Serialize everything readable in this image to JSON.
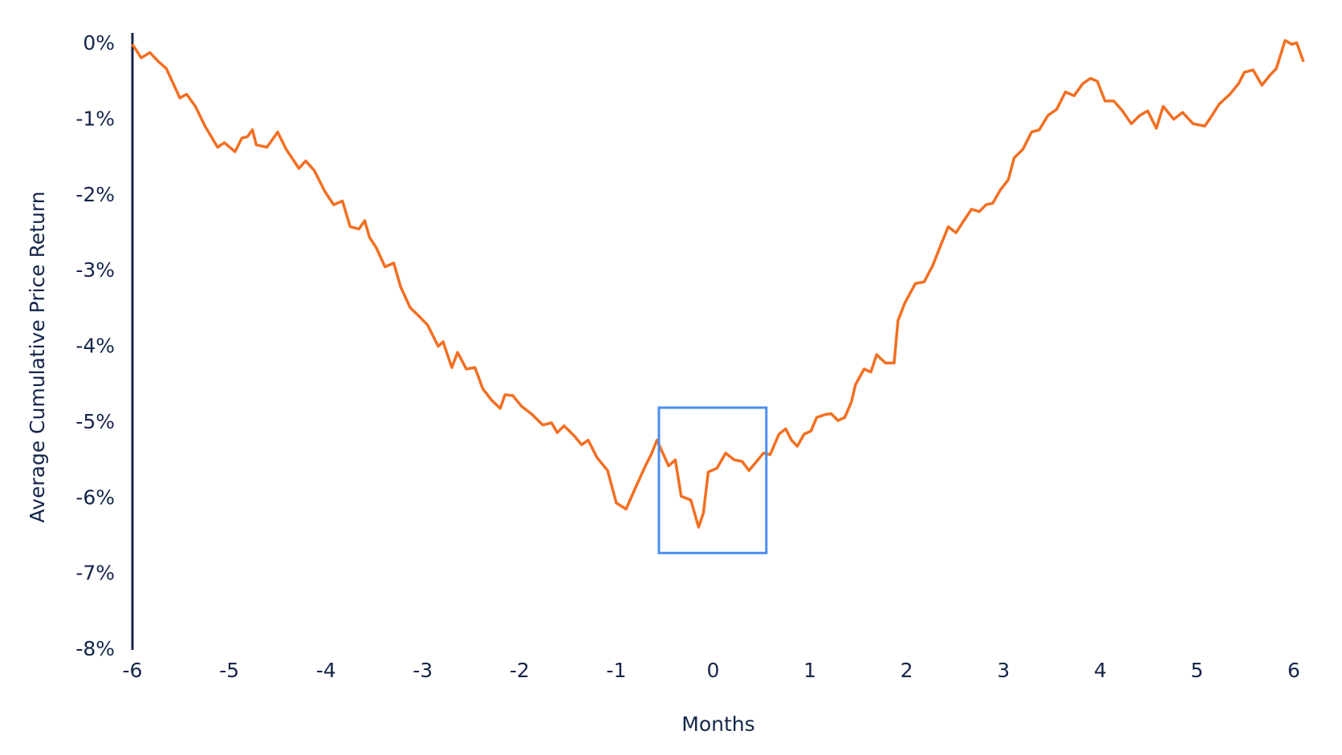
{
  "chart_data": {
    "type": "line",
    "y_label": "Average Cumulative Price Return",
    "x_label": "Months",
    "x": [
      -6,
      -5.91,
      -5.82,
      -5.73,
      -5.65,
      -5.51,
      -5.44,
      -5.35,
      -5.25,
      -5.12,
      -5.05,
      -4.94,
      -4.87,
      -4.81,
      -4.76,
      -4.72,
      -4.61,
      -4.5,
      -4.41,
      -4.28,
      -4.21,
      -4.12,
      -4.01,
      -3.92,
      -3.83,
      -3.75,
      -3.66,
      -3.6,
      -3.55,
      -3.48,
      -3.39,
      -3.3,
      -3.23,
      -3.13,
      -3.04,
      -2.95,
      -2.84,
      -2.79,
      -2.7,
      -2.64,
      -2.55,
      -2.46,
      -2.38,
      -2.29,
      -2.2,
      -2.15,
      -2.07,
      -1.98,
      -1.87,
      -1.76,
      -1.67,
      -1.61,
      -1.54,
      -1.43,
      -1.36,
      -1.29,
      -1.2,
      -1.09,
      -1,
      -0.9,
      -0.81,
      -0.7,
      -0.64,
      -0.58,
      -0.52,
      -0.46,
      -0.39,
      -0.33,
      -0.23,
      -0.15,
      -0.1,
      -0.05,
      0.04,
      0.13,
      0.22,
      0.3,
      0.37,
      0.45,
      0.52,
      0.59,
      0.68,
      0.75,
      0.81,
      0.87,
      0.94,
      1.01,
      1.07,
      1.16,
      1.22,
      1.29,
      1.36,
      1.43,
      1.47,
      1.56,
      1.63,
      1.69,
      1.78,
      1.87,
      1.91,
      1.98,
      2.09,
      2.18,
      2.27,
      2.36,
      2.43,
      2.51,
      2.58,
      2.67,
      2.75,
      2.82,
      2.89,
      2.97,
      3.05,
      3.11,
      3.2,
      3.29,
      3.37,
      3.46,
      3.55,
      3.64,
      3.73,
      3.82,
      3.9,
      3.97,
      4.05,
      4.14,
      4.23,
      4.32,
      4.41,
      4.49,
      4.58,
      4.65,
      4.76,
      4.85,
      4.96,
      5.08,
      5.14,
      5.23,
      5.34,
      5.43,
      5.49,
      5.58,
      5.67,
      5.76,
      5.82,
      5.91,
      5.98,
      6.03,
      6.1
    ],
    "series": [
      {
        "color": "#f26f21",
        "values": [
          0,
          -0.18,
          -0.11,
          -0.23,
          -0.32,
          -0.71,
          -0.66,
          -0.82,
          -1.08,
          -1.36,
          -1.3,
          -1.42,
          -1.24,
          -1.22,
          -1.13,
          -1.33,
          -1.36,
          -1.16,
          -1.39,
          -1.64,
          -1.54,
          -1.67,
          -1.95,
          -2.12,
          -2.07,
          -2.41,
          -2.44,
          -2.33,
          -2.55,
          -2.69,
          -2.94,
          -2.89,
          -3.2,
          -3.48,
          -3.59,
          -3.71,
          -3.99,
          -3.93,
          -4.27,
          -4.07,
          -4.29,
          -4.27,
          -4.55,
          -4.7,
          -4.81,
          -4.63,
          -4.64,
          -4.78,
          -4.89,
          -5.03,
          -5,
          -5.13,
          -5.04,
          -5.18,
          -5.29,
          -5.23,
          -5.46,
          -5.63,
          -6.06,
          -6.14,
          -5.88,
          -5.57,
          -5.42,
          -5.23,
          -5.4,
          -5.57,
          -5.49,
          -5.97,
          -6.02,
          -6.38,
          -6.19,
          -5.65,
          -5.6,
          -5.4,
          -5.49,
          -5.51,
          -5.63,
          -5.51,
          -5.4,
          -5.42,
          -5.15,
          -5.08,
          -5.23,
          -5.31,
          -5.15,
          -5.11,
          -4.93,
          -4.89,
          -4.88,
          -4.97,
          -4.93,
          -4.72,
          -4.5,
          -4.29,
          -4.33,
          -4.1,
          -4.21,
          -4.21,
          -3.65,
          -3.42,
          -3.16,
          -3.14,
          -2.92,
          -2.63,
          -2.41,
          -2.49,
          -2.35,
          -2.18,
          -2.21,
          -2.12,
          -2.1,
          -1.92,
          -1.79,
          -1.5,
          -1.39,
          -1.16,
          -1.13,
          -0.94,
          -0.86,
          -0.63,
          -0.68,
          -0.52,
          -0.45,
          -0.49,
          -0.75,
          -0.75,
          -0.88,
          -1.05,
          -0.94,
          -0.88,
          -1.11,
          -0.82,
          -0.99,
          -0.9,
          -1.05,
          -1.08,
          -0.97,
          -0.79,
          -0.66,
          -0.52,
          -0.37,
          -0.34,
          -0.54,
          -0.4,
          -0.32,
          0.05,
          0,
          0.02,
          -0.23
        ]
      }
    ],
    "xlim": [
      -6,
      6.1
    ],
    "xticks": [
      -6,
      -5,
      -4,
      -3,
      -2,
      -1,
      0,
      1,
      2,
      3,
      4,
      5,
      6
    ],
    "ylim": [
      -8,
      0.15
    ],
    "yticks": [
      {
        "value": 0,
        "label": "0%"
      },
      {
        "value": -1,
        "label": "-1%"
      },
      {
        "value": -2,
        "label": "-2%"
      },
      {
        "value": -3,
        "label": "-3%"
      },
      {
        "value": -4,
        "label": "-4%"
      },
      {
        "value": -5,
        "label": "-5%"
      },
      {
        "value": -6,
        "label": "-6%"
      },
      {
        "value": -7,
        "label": "-7%"
      },
      {
        "value": -8,
        "label": "-8%"
      }
    ],
    "highlight": {
      "x": [
        -0.56,
        0.55
      ],
      "y": [
        -4.8,
        -6.72
      ],
      "color": "#4a8ef0"
    }
  }
}
